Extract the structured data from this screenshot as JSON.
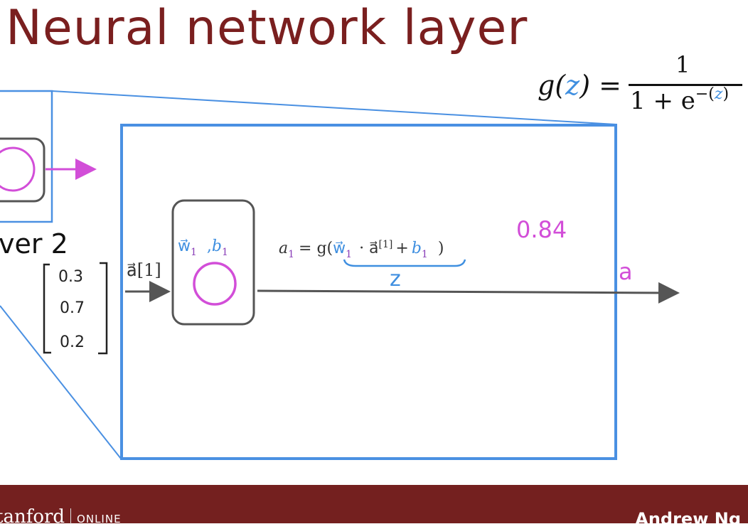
{
  "title": "Neural network layer",
  "activation_formula": {
    "lhs_prefix": "g(",
    "lhs_var": "z",
    "lhs_suffix": ") =",
    "numerator": "1",
    "denominator_prefix": "1 + e",
    "exponent_prefix": "−(",
    "exponent_var": "z",
    "exponent_suffix": ")"
  },
  "layer_label": "ver 2",
  "input_vector": [
    "0.3",
    "0.7",
    "0.2"
  ],
  "input_label": "a⃗[1]",
  "neuron_params": {
    "w": "w⃗",
    "w_sub": "1",
    "comma": ",",
    "b": "b",
    "b_sub": "1"
  },
  "equation": {
    "a": "a",
    "a_sub": "1",
    "eq": "= g(",
    "w": "w⃗",
    "w_sub": "1",
    "dot_a": "· a⃗",
    "sup": "[1]",
    "plus": "+",
    "b": "b",
    "b_sub": "1",
    "close": ")"
  },
  "z_annotation": "z",
  "output_value": "0.84",
  "output_label": "a",
  "footer": {
    "brand": "tanford",
    "online": "ONLINE",
    "author": "Andrew Ng"
  },
  "colors": {
    "title": "#7a1f1f",
    "box_blue": "#4a90e2",
    "neuron_magenta": "#d24ed8",
    "formula_z": "#3f8fe0",
    "param_blue": "#3f8fe0",
    "param_purple": "#8a3fb8",
    "footer_bg": "#74201f"
  }
}
